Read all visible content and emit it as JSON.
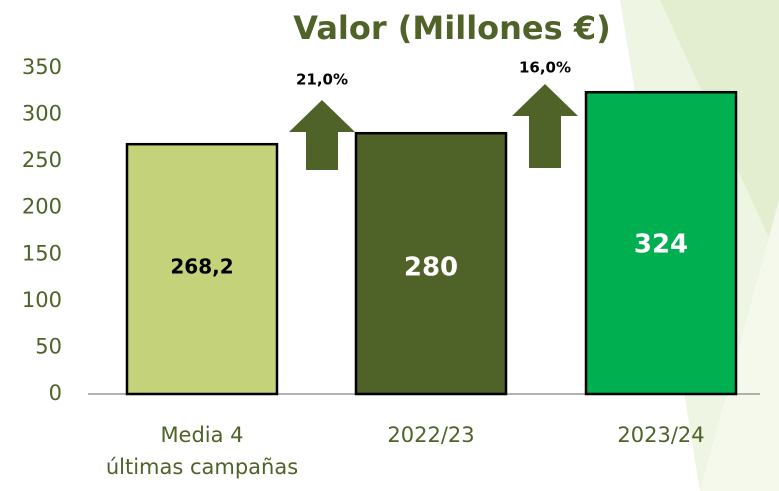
{
  "chart_data": {
    "type": "bar",
    "title": "Valor (Millones €)",
    "categories": [
      "Media 4\núltimas campañas",
      "2022/23",
      "2023/24"
    ],
    "values": [
      268.2,
      280,
      324
    ],
    "value_labels": [
      "268,2",
      "280",
      "324"
    ],
    "colors": [
      "#c4d37a",
      "#4f6228",
      "#00b050"
    ],
    "label_colors": [
      "#000000",
      "#ffffff",
      "#ffffff"
    ],
    "growth_annotations": [
      {
        "value": 21.0,
        "label": "21,0%"
      },
      {
        "value": 16.0,
        "label": "16,0%"
      }
    ],
    "ylim": [
      0,
      350
    ],
    "yticks": [
      0,
      50,
      100,
      150,
      200,
      250,
      300,
      350
    ],
    "grid": false
  }
}
